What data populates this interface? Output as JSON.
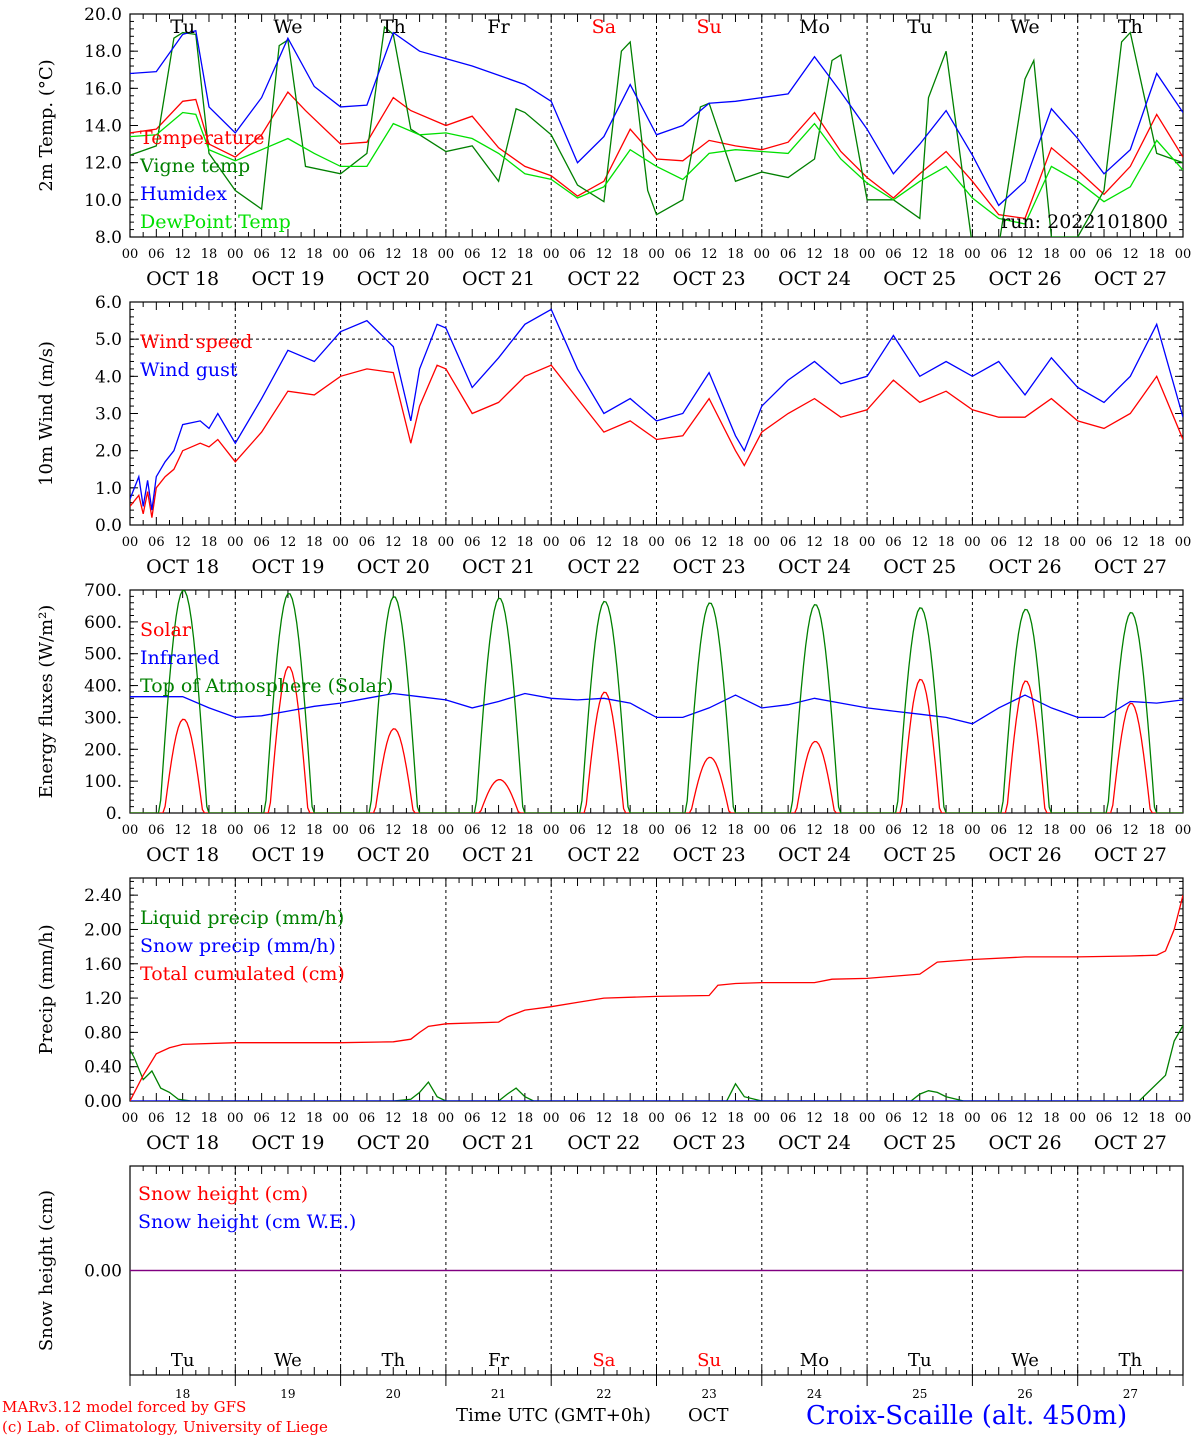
{
  "days": {
    "labels": [
      "Tu",
      "We",
      "Th",
      "Fr",
      "Sa",
      "Su",
      "Mo",
      "Tu",
      "We",
      "Th"
    ],
    "dates": [
      "OCT 18",
      "OCT 19",
      "OCT 20",
      "OCT 21",
      "OCT 22",
      "OCT 23",
      "OCT 24",
      "OCT 25",
      "OCT 26",
      "OCT 27"
    ],
    "day_numbers": [
      "18",
      "19",
      "20",
      "21",
      "22",
      "23",
      "24",
      "25",
      "26",
      "27"
    ],
    "weekend_index": [
      4,
      5
    ],
    "hour_ticks": [
      "00",
      "06",
      "12",
      "18"
    ],
    "weekday_color": "#000000",
    "weekend_color": "#ff0000"
  },
  "colors": {
    "red": "#ff0000",
    "green": "#008000",
    "blue": "#0000ff",
    "lightgreen": "#00e000",
    "purple": "#800080",
    "grid": "#000000"
  },
  "chart_data": [
    {
      "id": "temp",
      "type": "line",
      "ylabel": "2m Temp. (°C)",
      "ylim": [
        8.0,
        20.0
      ],
      "yticks": [
        "8.0",
        "10.0",
        "12.0",
        "14.0",
        "16.0",
        "18.0",
        "20.0"
      ],
      "annotation": "run: 2022101800",
      "x_unit": "hours from 2022-10-18 00 UTC",
      "series": [
        {
          "name": "Temperature",
          "color": "red",
          "x": [
            0,
            6,
            12,
            15,
            18,
            24,
            30,
            36,
            40,
            48,
            54,
            60,
            64,
            72,
            78,
            84,
            90,
            96,
            102,
            108,
            114,
            120,
            126,
            132,
            138,
            144,
            150,
            156,
            162,
            168,
            174,
            180,
            186,
            192,
            198,
            204,
            210,
            216,
            222,
            228,
            234,
            240
          ],
          "y": [
            13.6,
            13.8,
            15.3,
            15.4,
            13.0,
            12.3,
            13.5,
            15.8,
            14.8,
            13.0,
            13.1,
            15.5,
            14.8,
            14.0,
            14.5,
            12.8,
            11.8,
            11.3,
            10.2,
            11.0,
            13.8,
            12.2,
            12.1,
            13.2,
            12.9,
            12.7,
            13.1,
            14.7,
            12.6,
            11.2,
            10.1,
            11.4,
            12.6,
            11.0,
            9.2,
            9.0,
            12.8,
            11.6,
            10.3,
            11.8,
            14.6,
            12.3
          ]
        },
        {
          "name": "Vigne temp",
          "color": "green",
          "x": [
            0,
            6,
            10,
            12,
            15,
            18,
            24,
            30,
            34,
            36,
            40,
            48,
            54,
            58,
            60,
            64,
            72,
            78,
            84,
            88,
            90,
            96,
            102,
            108,
            112,
            114,
            118,
            120,
            126,
            130,
            132,
            138,
            144,
            150,
            156,
            160,
            162,
            168,
            174,
            180,
            182,
            186,
            192,
            198,
            204,
            206,
            210,
            216,
            222,
            226,
            228,
            234,
            240
          ],
          "y": [
            12.4,
            12.9,
            18.7,
            19.0,
            18.9,
            12.5,
            10.5,
            9.5,
            18.3,
            18.6,
            11.8,
            11.4,
            12.5,
            19.3,
            18.9,
            13.8,
            12.6,
            12.9,
            11.0,
            14.9,
            14.7,
            13.5,
            10.8,
            9.9,
            18.0,
            18.5,
            10.5,
            9.2,
            10.0,
            15.0,
            15.2,
            11.0,
            11.5,
            11.2,
            12.2,
            17.5,
            17.8,
            10.0,
            10.0,
            9.0,
            15.5,
            18.0,
            7.5,
            7.5,
            16.5,
            17.5,
            8.0,
            8.0,
            10.5,
            18.5,
            19.0,
            12.5,
            12.0
          ]
        },
        {
          "name": "Humidex",
          "color": "blue",
          "x": [
            0,
            6,
            12,
            15,
            18,
            24,
            30,
            36,
            42,
            48,
            54,
            60,
            66,
            72,
            78,
            84,
            90,
            96,
            102,
            108,
            114,
            120,
            126,
            132,
            138,
            144,
            150,
            156,
            162,
            168,
            174,
            180,
            186,
            192,
            198,
            204,
            210,
            216,
            222,
            228,
            234,
            240
          ],
          "y": [
            16.8,
            16.9,
            18.9,
            19.1,
            15.0,
            13.6,
            15.5,
            18.7,
            16.1,
            15.0,
            15.1,
            19.0,
            18.0,
            17.6,
            17.2,
            16.7,
            16.2,
            15.3,
            12.0,
            13.4,
            16.2,
            13.5,
            14.0,
            15.2,
            15.3,
            15.5,
            15.7,
            17.7,
            15.8,
            13.8,
            11.4,
            13.0,
            14.8,
            12.4,
            9.7,
            11.0,
            14.9,
            13.3,
            11.4,
            12.7,
            16.8,
            14.7
          ]
        },
        {
          "name": "DewPoint Temp",
          "color": "lightgreen",
          "x": [
            0,
            6,
            12,
            15,
            18,
            24,
            30,
            36,
            42,
            48,
            54,
            60,
            66,
            72,
            78,
            84,
            90,
            96,
            102,
            108,
            114,
            120,
            126,
            132,
            138,
            144,
            150,
            156,
            162,
            168,
            174,
            180,
            186,
            192,
            198,
            204,
            210,
            216,
            222,
            228,
            234,
            240
          ],
          "y": [
            13.4,
            13.5,
            14.7,
            14.6,
            12.7,
            12.1,
            12.7,
            13.3,
            12.5,
            11.8,
            11.8,
            14.1,
            13.5,
            13.6,
            13.3,
            12.5,
            11.4,
            11.1,
            10.1,
            10.7,
            12.7,
            11.8,
            11.1,
            12.5,
            12.7,
            12.6,
            12.5,
            14.1,
            12.2,
            10.9,
            10.0,
            11.0,
            11.8,
            10.1,
            9.0,
            8.7,
            11.8,
            11.0,
            9.9,
            10.7,
            13.2,
            11.6
          ]
        }
      ]
    },
    {
      "id": "wind",
      "type": "line",
      "ylabel": "10m Wind (m/s)",
      "ylim": [
        0.0,
        6.0
      ],
      "yticks": [
        "0.0",
        "1.0",
        "2.0",
        "3.0",
        "4.0",
        "5.0",
        "6.0"
      ],
      "ref_line": 5.0,
      "x_unit": "hours from 2022-10-18 00 UTC",
      "series": [
        {
          "name": "Wind speed",
          "color": "red",
          "x": [
            0,
            2,
            3,
            4,
            5,
            6,
            8,
            10,
            12,
            16,
            18,
            20,
            24,
            30,
            36,
            42,
            48,
            54,
            60,
            64,
            66,
            70,
            72,
            78,
            84,
            90,
            96,
            102,
            108,
            114,
            120,
            126,
            132,
            138,
            140,
            144,
            150,
            156,
            162,
            168,
            174,
            180,
            186,
            192,
            198,
            204,
            210,
            216,
            222,
            228,
            234,
            240
          ],
          "y": [
            0.5,
            0.8,
            0.3,
            0.9,
            0.2,
            1.0,
            1.3,
            1.5,
            2.0,
            2.2,
            2.1,
            2.3,
            1.7,
            2.5,
            3.6,
            3.5,
            4.0,
            4.2,
            4.1,
            2.2,
            3.2,
            4.3,
            4.2,
            3.0,
            3.3,
            4.0,
            4.3,
            3.4,
            2.5,
            2.8,
            2.3,
            2.4,
            3.4,
            2.0,
            1.6,
            2.5,
            3.0,
            3.4,
            2.9,
            3.1,
            3.9,
            3.3,
            3.6,
            3.1,
            2.9,
            2.9,
            3.4,
            2.8,
            2.6,
            3.0,
            4.0,
            2.3
          ]
        },
        {
          "name": "Wind gust",
          "color": "blue",
          "x": [
            0,
            2,
            3,
            4,
            5,
            6,
            8,
            10,
            12,
            16,
            18,
            20,
            24,
            30,
            36,
            42,
            48,
            54,
            60,
            64,
            66,
            70,
            72,
            78,
            84,
            90,
            96,
            102,
            108,
            114,
            120,
            126,
            132,
            138,
            140,
            144,
            150,
            156,
            162,
            168,
            174,
            180,
            186,
            192,
            198,
            204,
            210,
            216,
            222,
            228,
            234,
            240
          ],
          "y": [
            0.7,
            1.3,
            0.5,
            1.2,
            0.4,
            1.3,
            1.7,
            2.0,
            2.7,
            2.8,
            2.6,
            3.0,
            2.2,
            3.4,
            4.7,
            4.4,
            5.2,
            5.5,
            4.8,
            2.8,
            4.2,
            5.4,
            5.3,
            3.7,
            4.5,
            5.4,
            5.8,
            4.2,
            3.0,
            3.4,
            2.8,
            3.0,
            4.1,
            2.4,
            2.0,
            3.2,
            3.9,
            4.4,
            3.8,
            4.0,
            5.1,
            4.0,
            4.4,
            4.0,
            4.4,
            3.5,
            4.5,
            3.7,
            3.3,
            4.0,
            5.4,
            2.9
          ]
        }
      ]
    },
    {
      "id": "energy",
      "type": "line",
      "ylabel": "Energy fluxes (W/m²)",
      "ylim": [
        0,
        700
      ],
      "yticks": [
        "0.",
        "100.",
        "200.",
        "300.",
        "400.",
        "500.",
        "600.",
        "700."
      ],
      "x_unit": "hours from 2022-10-18 00 UTC",
      "toa_peaks": [
        700,
        690,
        680,
        675,
        665,
        660,
        655,
        645,
        640,
        630
      ],
      "solar_peaks": [
        295,
        460,
        265,
        105,
        380,
        175,
        225,
        420,
        415,
        345
      ],
      "series": [
        {
          "name": "Solar",
          "color": "red"
        },
        {
          "name": "Infrared",
          "color": "blue",
          "x": [
            0,
            12,
            18,
            24,
            30,
            36,
            42,
            48,
            54,
            60,
            66,
            72,
            78,
            84,
            90,
            96,
            102,
            108,
            114,
            120,
            126,
            132,
            138,
            144,
            150,
            156,
            162,
            168,
            174,
            180,
            186,
            192,
            198,
            204,
            210,
            216,
            222,
            228,
            234,
            240
          ],
          "y": [
            365,
            365,
            330,
            300,
            305,
            320,
            335,
            345,
            360,
            375,
            365,
            355,
            330,
            350,
            375,
            360,
            355,
            360,
            345,
            300,
            300,
            330,
            370,
            330,
            340,
            360,
            345,
            330,
            320,
            310,
            300,
            280,
            330,
            370,
            330,
            300,
            300,
            350,
            345,
            355
          ]
        },
        {
          "name": "Top of Atmosphere (Solar)",
          "color": "green"
        }
      ]
    },
    {
      "id": "precip",
      "type": "line",
      "ylabel": "Precip (mm/h)",
      "ylim": [
        0.0,
        2.6
      ],
      "yticks": [
        "0.00",
        "0.40",
        "0.80",
        "1.20",
        "1.60",
        "2.00",
        "2.40"
      ],
      "x_unit": "hours from 2022-10-18 00 UTC",
      "series": [
        {
          "name": "Liquid precip (mm/h)",
          "color": "green",
          "x": [
            0,
            1,
            3,
            5,
            7,
            9,
            11,
            14,
            20,
            60,
            64,
            66,
            68,
            70,
            72,
            84,
            86,
            88,
            90,
            92,
            98,
            120,
            136,
            138,
            140,
            144,
            178,
            180,
            182,
            184,
            186,
            190,
            230,
            236,
            238,
            240
          ],
          "y": [
            0.6,
            0.5,
            0.25,
            0.35,
            0.15,
            0.1,
            0.02,
            0.0,
            0.0,
            0.0,
            0.02,
            0.1,
            0.22,
            0.05,
            0.0,
            0.0,
            0.08,
            0.15,
            0.05,
            0.0,
            0.0,
            0.0,
            0.0,
            0.2,
            0.05,
            0.0,
            0.0,
            0.08,
            0.12,
            0.1,
            0.05,
            0.0,
            0.0,
            0.3,
            0.7,
            0.88
          ]
        },
        {
          "name": "Snow precip (mm/h)",
          "color": "blue",
          "x": [
            0,
            240
          ],
          "y": [
            0,
            0
          ]
        },
        {
          "name": "Total cumulated (cm)",
          "color": "red",
          "x": [
            0,
            3,
            6,
            9,
            12,
            24,
            48,
            60,
            64,
            66,
            68,
            72,
            84,
            86,
            90,
            96,
            102,
            108,
            120,
            132,
            134,
            138,
            144,
            156,
            160,
            168,
            180,
            184,
            192,
            204,
            216,
            228,
            234,
            236,
            238,
            240
          ],
          "y": [
            0.0,
            0.3,
            0.55,
            0.62,
            0.66,
            0.68,
            0.68,
            0.69,
            0.72,
            0.8,
            0.87,
            0.9,
            0.92,
            0.98,
            1.06,
            1.1,
            1.15,
            1.2,
            1.22,
            1.23,
            1.35,
            1.37,
            1.38,
            1.38,
            1.42,
            1.43,
            1.48,
            1.62,
            1.65,
            1.68,
            1.68,
            1.69,
            1.7,
            1.75,
            2.0,
            2.4
          ]
        }
      ]
    },
    {
      "id": "snow",
      "type": "line",
      "ylabel": "Snow height (cm)",
      "ylim": [
        -1,
        1
      ],
      "yticks": [
        "0.00"
      ],
      "x_unit": "hours from 2022-10-18 00 UTC",
      "series": [
        {
          "name": "Snow height (cm)",
          "color": "red",
          "x": [
            0,
            240
          ],
          "y": [
            0,
            0
          ]
        },
        {
          "name": "Snow height (cm W.E.)",
          "color": "blue",
          "x": [
            0,
            240
          ],
          "y": [
            0,
            0
          ]
        }
      ]
    }
  ],
  "footer": {
    "model_line": "MARv3.12 model forced by GFS",
    "credit_line": "(c) Lab. of Climatology, University of Liege",
    "xaxis_label": "Time UTC (GMT+0h)",
    "month": "OCT",
    "station": "Croix-Scaille (alt. 450m)"
  }
}
